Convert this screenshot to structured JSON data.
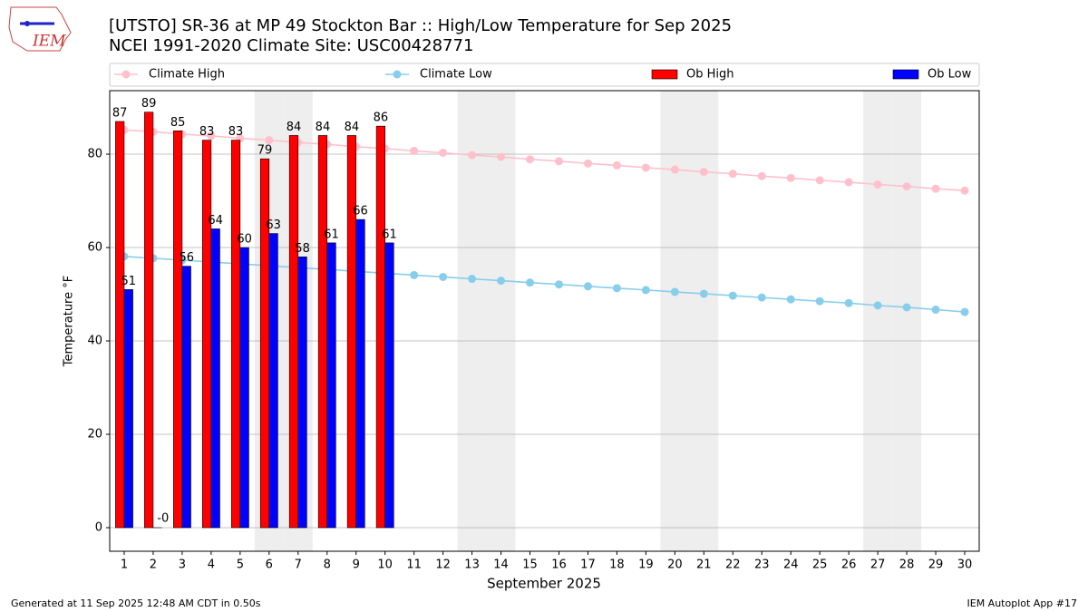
{
  "chart_data": {
    "type": "bar",
    "title": "[UTSTO] SR-36 at MP 49 Stockton Bar  :: High/Low Temperature for Sep 2025",
    "subtitle": "NCEI 1991-2020 Climate Site: USC00428771",
    "logo_text": "IEM",
    "x_label": "September 2025",
    "y_label": "Temperature °F",
    "footer_left": "Generated at 11 Sep 2025 12:48 AM CDT in 0.50s",
    "footer_right": "IEM Autoplot App #17",
    "x": [
      1,
      2,
      3,
      4,
      5,
      6,
      7,
      8,
      9,
      10,
      11,
      12,
      13,
      14,
      15,
      16,
      17,
      18,
      19,
      20,
      21,
      22,
      23,
      24,
      25,
      26,
      27,
      28,
      29,
      30
    ],
    "xlim": [
      0.5,
      30.5
    ],
    "xticks": [
      1,
      2,
      3,
      4,
      5,
      6,
      7,
      8,
      9,
      10,
      11,
      12,
      13,
      14,
      15,
      16,
      17,
      18,
      19,
      20,
      21,
      22,
      23,
      24,
      25,
      26,
      27,
      28,
      29,
      30
    ],
    "ylim": [
      -5.05,
      93.6
    ],
    "yticks": [
      0,
      20,
      40,
      60,
      80
    ],
    "grid": true,
    "shaded_days": [
      6,
      7,
      13,
      14,
      20,
      21,
      27,
      28
    ],
    "series": [
      {
        "name": "Climate High",
        "type": "line",
        "color": "#ffc0cb",
        "values": [
          85.2,
          84.8,
          84.3,
          83.9,
          83.4,
          83.0,
          82.5,
          82.1,
          81.6,
          81.2,
          80.7,
          80.3,
          79.8,
          79.4,
          78.9,
          78.5,
          78.0,
          77.6,
          77.1,
          76.7,
          76.2,
          75.8,
          75.3,
          74.9,
          74.4,
          74.0,
          73.5,
          73.1,
          72.6,
          72.2
        ]
      },
      {
        "name": "Climate Low",
        "type": "line",
        "color": "#87ceeb",
        "values": [
          58.1,
          57.7,
          57.3,
          56.9,
          56.5,
          56.1,
          55.7,
          55.3,
          54.9,
          54.5,
          54.1,
          53.7,
          53.3,
          52.9,
          52.5,
          52.1,
          51.7,
          51.3,
          50.9,
          50.5,
          50.1,
          49.7,
          49.3,
          48.9,
          48.5,
          48.1,
          47.6,
          47.2,
          46.7,
          46.2
        ]
      },
      {
        "name": "Ob High",
        "type": "bar",
        "color": "#ff0000",
        "values": [
          87,
          89,
          85,
          83,
          83,
          79,
          84,
          84,
          84,
          86,
          null,
          null,
          null,
          null,
          null,
          null,
          null,
          null,
          null,
          null,
          null,
          null,
          null,
          null,
          null,
          null,
          null,
          null,
          null,
          null
        ]
      },
      {
        "name": "Ob Low",
        "type": "bar",
        "color": "#0000ff",
        "values": [
          51,
          0,
          56,
          64,
          60,
          63,
          58,
          61,
          66,
          61,
          null,
          null,
          null,
          null,
          null,
          null,
          null,
          null,
          null,
          null,
          null,
          null,
          null,
          null,
          null,
          null,
          null,
          null,
          null,
          null
        ],
        "value_labels": [
          "51",
          "-0",
          "56",
          "64",
          "60",
          "63",
          "58",
          "61",
          "66",
          "61",
          null,
          null,
          null,
          null,
          null,
          null,
          null,
          null,
          null,
          null,
          null,
          null,
          null,
          null,
          null,
          null,
          null,
          null,
          null,
          null
        ]
      }
    ]
  }
}
